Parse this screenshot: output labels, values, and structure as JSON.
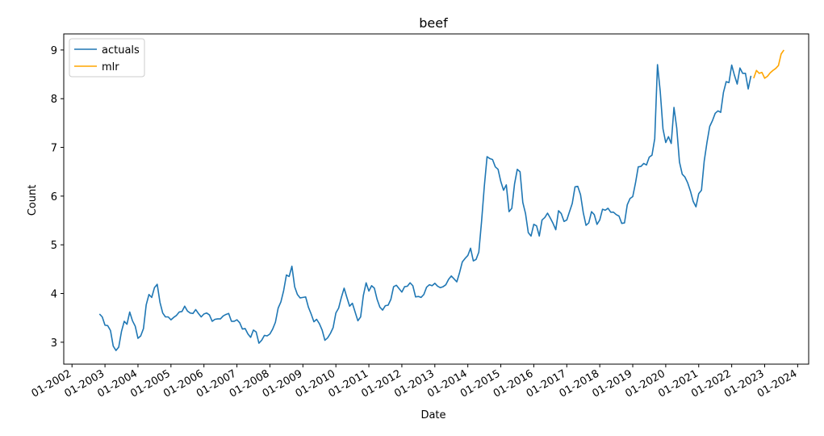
{
  "chart_data": {
    "type": "line",
    "title": "beef",
    "xlabel": "Date",
    "ylabel": "Count",
    "x_tick_labels": [
      "01-2002",
      "01-2003",
      "01-2004",
      "01-2005",
      "01-2006",
      "01-2007",
      "01-2008",
      "01-2009",
      "01-2010",
      "01-2011",
      "01-2012",
      "01-2013",
      "01-2014",
      "01-2015",
      "01-2016",
      "01-2017",
      "01-2018",
      "01-2019",
      "01-2020",
      "01-2021",
      "01-2022",
      "01-2023",
      "01-2024"
    ],
    "y_ticks": [
      3,
      4,
      5,
      6,
      7,
      8,
      9
    ],
    "ylim": [
      2.55,
      9.33
    ],
    "xlim": [
      "2001-10",
      "2024-05"
    ],
    "grid": false,
    "legend_position": "top-left",
    "series": [
      {
        "name": "actuals",
        "color": "#1f77b4",
        "points": [
          [
            "2002-11",
            3.58
          ],
          [
            "2002-12",
            3.52
          ],
          [
            "2003-01",
            3.35
          ],
          [
            "2003-02",
            3.34
          ],
          [
            "2003-03",
            3.24
          ],
          [
            "2003-04",
            2.92
          ],
          [
            "2003-05",
            2.83
          ],
          [
            "2003-06",
            2.9
          ],
          [
            "2003-07",
            3.22
          ],
          [
            "2003-08",
            3.43
          ],
          [
            "2003-09",
            3.37
          ],
          [
            "2003-10",
            3.62
          ],
          [
            "2003-11",
            3.44
          ],
          [
            "2003-12",
            3.33
          ],
          [
            "2004-01",
            3.08
          ],
          [
            "2004-02",
            3.13
          ],
          [
            "2004-03",
            3.28
          ],
          [
            "2004-04",
            3.77
          ],
          [
            "2004-05",
            3.98
          ],
          [
            "2004-06",
            3.92
          ],
          [
            "2004-07",
            4.12
          ],
          [
            "2004-08",
            4.19
          ],
          [
            "2004-09",
            3.82
          ],
          [
            "2004-10",
            3.6
          ],
          [
            "2004-11",
            3.52
          ],
          [
            "2004-12",
            3.52
          ],
          [
            "2005-01",
            3.46
          ],
          [
            "2005-02",
            3.51
          ],
          [
            "2005-03",
            3.55
          ],
          [
            "2005-04",
            3.62
          ],
          [
            "2005-05",
            3.63
          ],
          [
            "2005-06",
            3.74
          ],
          [
            "2005-07",
            3.64
          ],
          [
            "2005-08",
            3.6
          ],
          [
            "2005-09",
            3.59
          ],
          [
            "2005-10",
            3.67
          ],
          [
            "2005-11",
            3.59
          ],
          [
            "2005-12",
            3.52
          ],
          [
            "2006-01",
            3.58
          ],
          [
            "2006-02",
            3.6
          ],
          [
            "2006-03",
            3.56
          ],
          [
            "2006-04",
            3.43
          ],
          [
            "2006-05",
            3.47
          ],
          [
            "2006-06",
            3.48
          ],
          [
            "2006-07",
            3.48
          ],
          [
            "2006-08",
            3.54
          ],
          [
            "2006-09",
            3.57
          ],
          [
            "2006-10",
            3.59
          ],
          [
            "2006-11",
            3.43
          ],
          [
            "2006-12",
            3.43
          ],
          [
            "2007-01",
            3.46
          ],
          [
            "2007-02",
            3.4
          ],
          [
            "2007-03",
            3.27
          ],
          [
            "2007-04",
            3.28
          ],
          [
            "2007-05",
            3.17
          ],
          [
            "2007-06",
            3.1
          ],
          [
            "2007-07",
            3.25
          ],
          [
            "2007-08",
            3.21
          ],
          [
            "2007-09",
            2.98
          ],
          [
            "2007-10",
            3.04
          ],
          [
            "2007-11",
            3.14
          ],
          [
            "2007-12",
            3.13
          ],
          [
            "2008-01",
            3.17
          ],
          [
            "2008-02",
            3.27
          ],
          [
            "2008-03",
            3.41
          ],
          [
            "2008-04",
            3.7
          ],
          [
            "2008-05",
            3.83
          ],
          [
            "2008-06",
            4.06
          ],
          [
            "2008-07",
            4.38
          ],
          [
            "2008-08",
            4.35
          ],
          [
            "2008-09",
            4.56
          ],
          [
            "2008-10",
            4.14
          ],
          [
            "2008-11",
            3.98
          ],
          [
            "2008-12",
            3.91
          ],
          [
            "2009-01",
            3.92
          ],
          [
            "2009-02",
            3.93
          ],
          [
            "2009-03",
            3.72
          ],
          [
            "2009-04",
            3.58
          ],
          [
            "2009-05",
            3.42
          ],
          [
            "2009-06",
            3.47
          ],
          [
            "2009-07",
            3.38
          ],
          [
            "2009-08",
            3.25
          ],
          [
            "2009-09",
            3.04
          ],
          [
            "2009-10",
            3.09
          ],
          [
            "2009-11",
            3.18
          ],
          [
            "2009-12",
            3.3
          ],
          [
            "2010-01",
            3.6
          ],
          [
            "2010-02",
            3.7
          ],
          [
            "2010-03",
            3.92
          ],
          [
            "2010-04",
            4.11
          ],
          [
            "2010-05",
            3.92
          ],
          [
            "2010-06",
            3.74
          ],
          [
            "2010-07",
            3.8
          ],
          [
            "2010-08",
            3.62
          ],
          [
            "2010-09",
            3.44
          ],
          [
            "2010-10",
            3.52
          ],
          [
            "2010-11",
            3.96
          ],
          [
            "2010-12",
            4.22
          ],
          [
            "2011-01",
            4.05
          ],
          [
            "2011-02",
            4.16
          ],
          [
            "2011-03",
            4.11
          ],
          [
            "2011-04",
            3.88
          ],
          [
            "2011-05",
            3.72
          ],
          [
            "2011-06",
            3.66
          ],
          [
            "2011-07",
            3.75
          ],
          [
            "2011-08",
            3.76
          ],
          [
            "2011-09",
            3.88
          ],
          [
            "2011-10",
            4.14
          ],
          [
            "2011-11",
            4.17
          ],
          [
            "2011-12",
            4.1
          ],
          [
            "2012-01",
            4.03
          ],
          [
            "2012-02",
            4.14
          ],
          [
            "2012-03",
            4.15
          ],
          [
            "2012-04",
            4.22
          ],
          [
            "2012-05",
            4.16
          ],
          [
            "2012-06",
            3.93
          ],
          [
            "2012-07",
            3.94
          ],
          [
            "2012-08",
            3.92
          ],
          [
            "2012-09",
            3.98
          ],
          [
            "2012-10",
            4.13
          ],
          [
            "2012-11",
            4.18
          ],
          [
            "2012-12",
            4.16
          ],
          [
            "2013-01",
            4.21
          ],
          [
            "2013-02",
            4.15
          ],
          [
            "2013-03",
            4.12
          ],
          [
            "2013-04",
            4.14
          ],
          [
            "2013-05",
            4.18
          ],
          [
            "2013-06",
            4.29
          ],
          [
            "2013-07",
            4.36
          ],
          [
            "2013-08",
            4.3
          ],
          [
            "2013-09",
            4.24
          ],
          [
            "2013-10",
            4.43
          ],
          [
            "2013-11",
            4.65
          ],
          [
            "2013-12",
            4.72
          ],
          [
            "2014-01",
            4.78
          ],
          [
            "2014-02",
            4.93
          ],
          [
            "2014-03",
            4.67
          ],
          [
            "2014-04",
            4.7
          ],
          [
            "2014-05",
            4.85
          ],
          [
            "2014-06",
            5.48
          ],
          [
            "2014-07",
            6.2
          ],
          [
            "2014-08",
            6.81
          ],
          [
            "2014-09",
            6.77
          ],
          [
            "2014-10",
            6.75
          ],
          [
            "2014-11",
            6.6
          ],
          [
            "2014-12",
            6.55
          ],
          [
            "2015-01",
            6.3
          ],
          [
            "2015-02",
            6.12
          ],
          [
            "2015-03",
            6.23
          ],
          [
            "2015-04",
            5.68
          ],
          [
            "2015-05",
            5.75
          ],
          [
            "2015-06",
            6.25
          ],
          [
            "2015-07",
            6.55
          ],
          [
            "2015-08",
            6.5
          ],
          [
            "2015-09",
            5.87
          ],
          [
            "2015-10",
            5.64
          ],
          [
            "2015-11",
            5.25
          ],
          [
            "2015-12",
            5.18
          ],
          [
            "2016-01",
            5.42
          ],
          [
            "2016-02",
            5.39
          ],
          [
            "2016-03",
            5.18
          ],
          [
            "2016-04",
            5.51
          ],
          [
            "2016-05",
            5.56
          ],
          [
            "2016-06",
            5.65
          ],
          [
            "2016-07",
            5.55
          ],
          [
            "2016-08",
            5.44
          ],
          [
            "2016-09",
            5.31
          ],
          [
            "2016-10",
            5.7
          ],
          [
            "2016-11",
            5.64
          ],
          [
            "2016-12",
            5.48
          ],
          [
            "2017-01",
            5.51
          ],
          [
            "2017-02",
            5.68
          ],
          [
            "2017-03",
            5.85
          ],
          [
            "2017-04",
            6.19
          ],
          [
            "2017-05",
            6.2
          ],
          [
            "2017-06",
            6.03
          ],
          [
            "2017-07",
            5.66
          ],
          [
            "2017-08",
            5.4
          ],
          [
            "2017-09",
            5.45
          ],
          [
            "2017-10",
            5.68
          ],
          [
            "2017-11",
            5.62
          ],
          [
            "2017-12",
            5.42
          ],
          [
            "2018-01",
            5.51
          ],
          [
            "2018-02",
            5.73
          ],
          [
            "2018-03",
            5.71
          ],
          [
            "2018-04",
            5.75
          ],
          [
            "2018-05",
            5.67
          ],
          [
            "2018-06",
            5.67
          ],
          [
            "2018-07",
            5.62
          ],
          [
            "2018-08",
            5.59
          ],
          [
            "2018-09",
            5.44
          ],
          [
            "2018-10",
            5.45
          ],
          [
            "2018-11",
            5.82
          ],
          [
            "2018-12",
            5.95
          ],
          [
            "2019-01",
            5.99
          ],
          [
            "2019-02",
            6.27
          ],
          [
            "2019-03",
            6.6
          ],
          [
            "2019-04",
            6.61
          ],
          [
            "2019-05",
            6.67
          ],
          [
            "2019-06",
            6.64
          ],
          [
            "2019-07",
            6.8
          ],
          [
            "2019-08",
            6.84
          ],
          [
            "2019-09",
            7.18
          ],
          [
            "2019-10",
            8.7
          ],
          [
            "2019-11",
            8.15
          ],
          [
            "2019-12",
            7.38
          ],
          [
            "2020-01",
            7.1
          ],
          [
            "2020-02",
            7.22
          ],
          [
            "2020-03",
            7.08
          ],
          [
            "2020-04",
            7.82
          ],
          [
            "2020-05",
            7.4
          ],
          [
            "2020-06",
            6.7
          ],
          [
            "2020-07",
            6.45
          ],
          [
            "2020-08",
            6.39
          ],
          [
            "2020-09",
            6.27
          ],
          [
            "2020-10",
            6.1
          ],
          [
            "2020-11",
            5.89
          ],
          [
            "2020-12",
            5.78
          ],
          [
            "2021-01",
            6.05
          ],
          [
            "2021-02",
            6.12
          ],
          [
            "2021-03",
            6.72
          ],
          [
            "2021-04",
            7.1
          ],
          [
            "2021-05",
            7.43
          ],
          [
            "2021-06",
            7.55
          ],
          [
            "2021-07",
            7.7
          ],
          [
            "2021-08",
            7.75
          ],
          [
            "2021-09",
            7.72
          ],
          [
            "2021-10",
            8.13
          ],
          [
            "2021-11",
            8.35
          ],
          [
            "2021-12",
            8.33
          ],
          [
            "2022-01",
            8.69
          ],
          [
            "2022-02",
            8.48
          ],
          [
            "2022-03",
            8.3
          ],
          [
            "2022-04",
            8.63
          ],
          [
            "2022-05",
            8.52
          ],
          [
            "2022-06",
            8.52
          ],
          [
            "2022-07",
            8.2
          ],
          [
            "2022-08",
            8.47
          ]
        ]
      },
      {
        "name": "mlr",
        "color": "#ffa500",
        "points": [
          [
            "2022-09",
            8.42
          ],
          [
            "2022-10",
            8.58
          ],
          [
            "2022-11",
            8.52
          ],
          [
            "2022-12",
            8.54
          ],
          [
            "2023-01",
            8.42
          ],
          [
            "2023-02",
            8.46
          ],
          [
            "2023-03",
            8.53
          ],
          [
            "2023-04",
            8.58
          ],
          [
            "2023-05",
            8.62
          ],
          [
            "2023-06",
            8.68
          ],
          [
            "2023-07",
            8.92
          ],
          [
            "2023-08",
            9.0
          ]
        ]
      }
    ]
  }
}
